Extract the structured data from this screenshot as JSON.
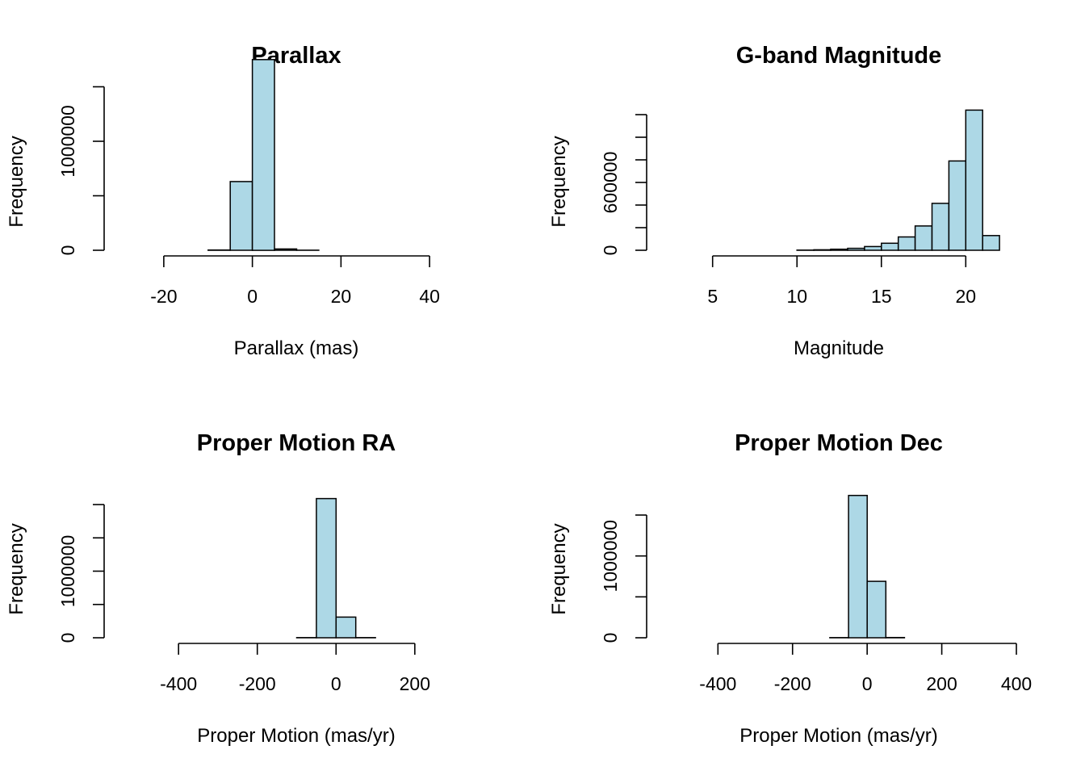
{
  "colors": {
    "bar_fill": "#add8e6",
    "bar_stroke": "#000000",
    "axis": "#000000",
    "background": "#ffffff"
  },
  "chart_data": [
    {
      "type": "bar",
      "title": "Parallax",
      "xlabel": "Parallax (mas)",
      "ylabel": "Frequency",
      "xlim": [
        -30,
        50
      ],
      "ylim": [
        0,
        1400000
      ],
      "x_ticks": [
        -20,
        0,
        20,
        40
      ],
      "x_tick_labels": [
        "-20",
        "0",
        "20",
        "40"
      ],
      "y_ticks": [
        0,
        500000,
        1000000,
        1500000
      ],
      "y_tick_labels": [
        "0",
        "",
        "1000000",
        ""
      ],
      "bins": [
        [
          -30,
          -25
        ],
        [
          -25,
          -20
        ],
        [
          -20,
          -15
        ],
        [
          -15,
          -10
        ],
        [
          -10,
          -5
        ],
        [
          -5,
          0
        ],
        [
          0,
          5
        ],
        [
          5,
          10
        ],
        [
          10,
          15
        ],
        [
          15,
          20
        ],
        [
          20,
          25
        ],
        [
          25,
          30
        ],
        [
          30,
          35
        ],
        [
          35,
          40
        ],
        [
          40,
          45
        ],
        [
          45,
          50
        ]
      ],
      "values": [
        0,
        0,
        0,
        0,
        2000,
        630000,
        1750000,
        12000,
        1000,
        0,
        0,
        0,
        0,
        0,
        0,
        0
      ],
      "grid": false
    },
    {
      "type": "bar",
      "title": "G-band Magnitude",
      "xlabel": "Magnitude",
      "ylabel": "Frequency",
      "xlim": [
        2,
        23
      ],
      "ylim": [
        0,
        1200000
      ],
      "x_ticks": [
        5,
        10,
        15,
        20
      ],
      "x_tick_labels": [
        "5",
        "10",
        "15",
        "20"
      ],
      "y_ticks": [
        0,
        200000,
        400000,
        600000,
        800000,
        1000000,
        1200000
      ],
      "y_tick_labels": [
        "0",
        "",
        "",
        "600000",
        "",
        "",
        ""
      ],
      "bins": [
        [
          2,
          3
        ],
        [
          3,
          4
        ],
        [
          4,
          5
        ],
        [
          5,
          6
        ],
        [
          6,
          7
        ],
        [
          7,
          8
        ],
        [
          8,
          9
        ],
        [
          9,
          10
        ],
        [
          10,
          11
        ],
        [
          11,
          12
        ],
        [
          12,
          13
        ],
        [
          13,
          14
        ],
        [
          14,
          15
        ],
        [
          15,
          16
        ],
        [
          16,
          17
        ],
        [
          17,
          18
        ],
        [
          18,
          19
        ],
        [
          19,
          20
        ],
        [
          20,
          21
        ],
        [
          21,
          22
        ]
      ],
      "values": [
        0,
        0,
        0,
        0,
        0,
        0,
        0,
        0,
        1500,
        4000,
        9000,
        17000,
        33000,
        62000,
        118000,
        215000,
        415000,
        790000,
        1240000,
        130000
      ],
      "grid": false
    },
    {
      "type": "bar",
      "title": "Proper Motion RA",
      "xlabel": "Proper Motion (mas/yr)",
      "ylabel": "Frequency",
      "xlim": [
        -550,
        350
      ],
      "ylim": [
        0,
        2000000
      ],
      "x_ticks": [
        -400,
        -200,
        0,
        200
      ],
      "x_tick_labels": [
        "-400",
        "-200",
        "0",
        "200"
      ],
      "y_ticks": [
        0,
        500000,
        1000000,
        1500000,
        2000000
      ],
      "y_tick_labels": [
        "0",
        "",
        "1000000",
        "",
        ""
      ],
      "bins": [
        [
          -550,
          -500
        ],
        [
          -500,
          -450
        ],
        [
          -450,
          -400
        ],
        [
          -400,
          -350
        ],
        [
          -350,
          -300
        ],
        [
          -300,
          -250
        ],
        [
          -250,
          -200
        ],
        [
          -200,
          -150
        ],
        [
          -150,
          -100
        ],
        [
          -100,
          -50
        ],
        [
          -50,
          0
        ],
        [
          0,
          50
        ],
        [
          50,
          100
        ],
        [
          100,
          150
        ],
        [
          150,
          200
        ],
        [
          200,
          250
        ],
        [
          250,
          300
        ],
        [
          300,
          350
        ]
      ],
      "values": [
        0,
        0,
        0,
        0,
        0,
        0,
        0,
        0,
        0,
        2000,
        2090000,
        310000,
        3000,
        0,
        0,
        0,
        0,
        0
      ],
      "grid": false
    },
    {
      "type": "bar",
      "title": "Proper Motion Dec",
      "xlabel": "Proper Motion (mas/yr)",
      "ylabel": "Frequency",
      "xlim": [
        -550,
        400
      ],
      "ylim": [
        0,
        1500000
      ],
      "x_ticks": [
        -400,
        -200,
        0,
        200,
        400
      ],
      "x_tick_labels": [
        "-400",
        "-200",
        "0",
        "200",
        "400"
      ],
      "y_ticks": [
        0,
        500000,
        1000000,
        1500000
      ],
      "y_tick_labels": [
        "0",
        "",
        "1000000",
        ""
      ],
      "bins": [
        [
          -550,
          -500
        ],
        [
          -500,
          -450
        ],
        [
          -450,
          -400
        ],
        [
          -400,
          -350
        ],
        [
          -350,
          -300
        ],
        [
          -300,
          -250
        ],
        [
          -250,
          -200
        ],
        [
          -200,
          -150
        ],
        [
          -150,
          -100
        ],
        [
          -100,
          -50
        ],
        [
          -50,
          0
        ],
        [
          0,
          50
        ],
        [
          50,
          100
        ],
        [
          100,
          150
        ],
        [
          150,
          200
        ],
        [
          200,
          250
        ],
        [
          250,
          300
        ],
        [
          300,
          350
        ],
        [
          350,
          400
        ]
      ],
      "values": [
        0,
        0,
        0,
        0,
        0,
        0,
        0,
        0,
        0,
        2000,
        1740000,
        690000,
        3000,
        0,
        0,
        0,
        0,
        0,
        0
      ],
      "grid": false
    }
  ]
}
